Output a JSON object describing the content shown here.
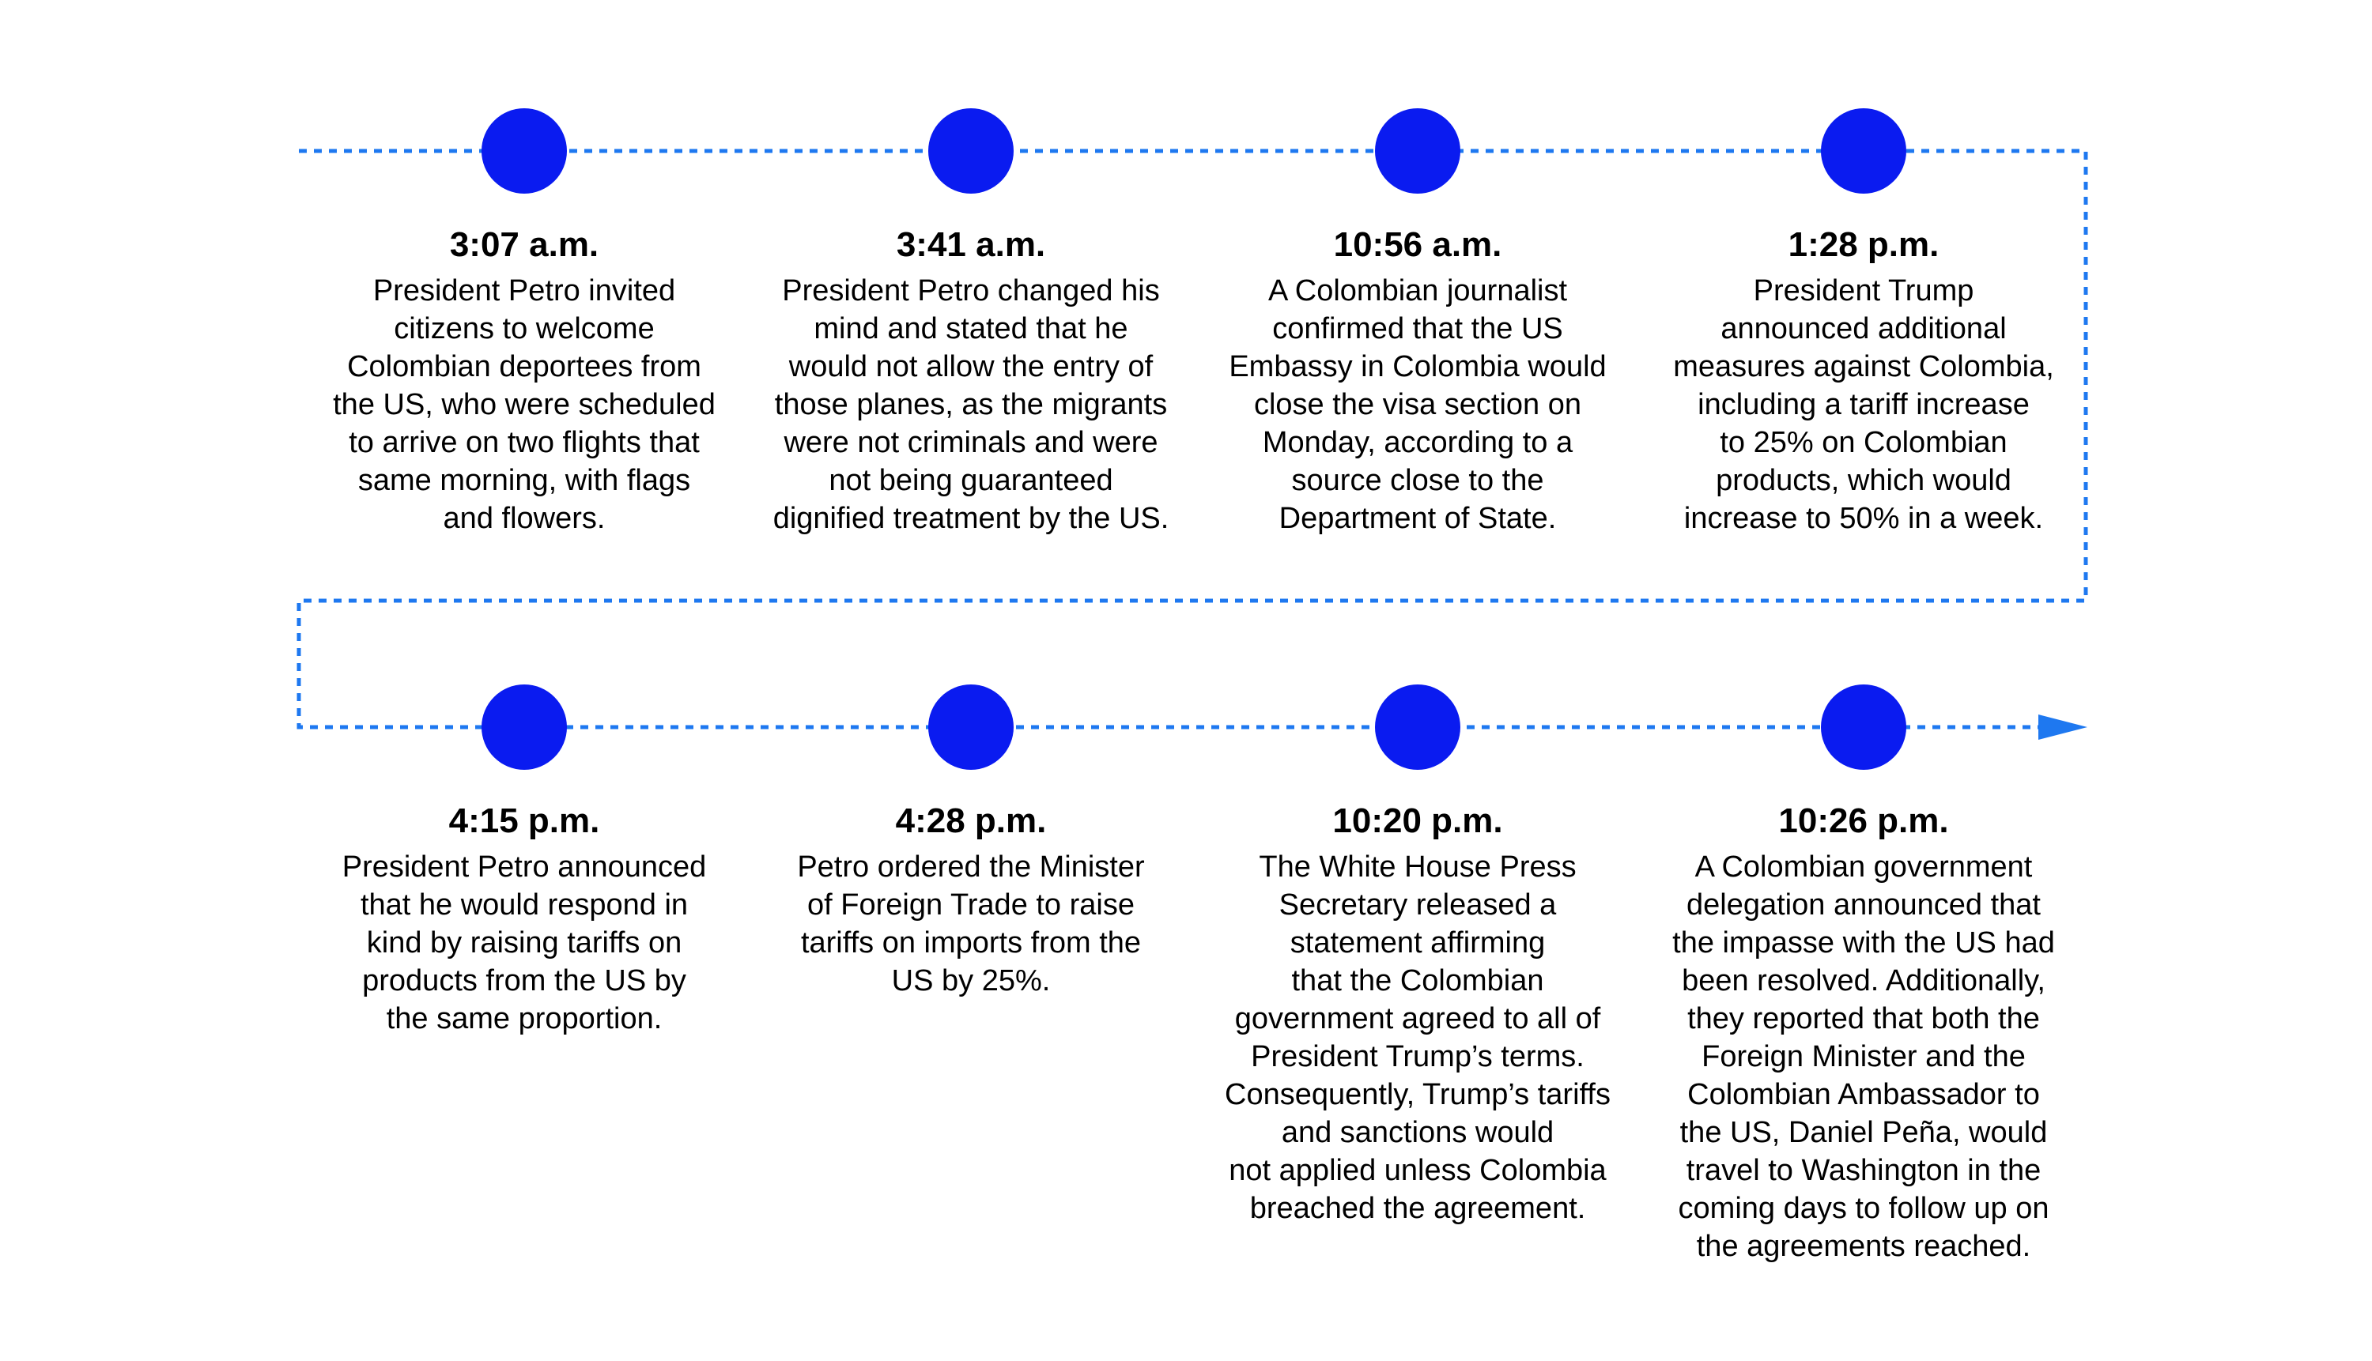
{
  "colors": {
    "marker": "#0A1BF0",
    "connector": "#1E78F0",
    "text": "#000000",
    "background": "#FFFFFF"
  },
  "events": [
    {
      "time": "3:07 a.m.",
      "description": "President Petro invited\ncitizens to welcome\nColombian deportees from\nthe US, who were scheduled\nto arrive on two flights that\nsame morning, with flags\nand flowers."
    },
    {
      "time": "3:41 a.m.",
      "description": "President Petro changed his\nmind and stated that he\nwould not allow the entry of\nthose planes, as the migrants\nwere not criminals and were\nnot being guaranteed\ndignified treatment by the US."
    },
    {
      "time": "10:56 a.m.",
      "description": "A Colombian journalist\nconfirmed that the US\nEmbassy in Colombia would\nclose the visa section on\nMonday, according to a\nsource close to the\nDepartment of State."
    },
    {
      "time": "1:28 p.m.",
      "description": "President Trump\nannounced additional\nmeasures against Colombia,\nincluding a tariff increase\nto 25% on Colombian\nproducts, which would\nincrease to 50% in a week."
    },
    {
      "time": "4:15 p.m.",
      "description": "President Petro announced\nthat he would respond in\nkind by raising tariffs on\nproducts from the US by\nthe same proportion."
    },
    {
      "time": "4:28 p.m.",
      "description": "Petro ordered the Minister\nof Foreign Trade to raise\ntariffs on imports from the\nUS by 25%."
    },
    {
      "time": "10:20 p.m.",
      "description": "The White House Press\nSecretary released a\nstatement affirming\nthat the Colombian\ngovernment agreed to all of\nPresident Trump’s terms.\nConsequently, Trump’s tariffs\nand sanctions would\nnot applied unless Colombia\nbreached the agreement."
    },
    {
      "time": "10:26 p.m.",
      "description": "A Colombian government\ndelegation announced that\nthe impasse with the US had\nbeen resolved. Additionally,\nthey reported that both the\nForeign Minister and the\nColombian Ambassador to\nthe US, Daniel Peña, would\ntravel to Washington in the\ncoming days to follow up on\nthe agreements reached."
    }
  ]
}
